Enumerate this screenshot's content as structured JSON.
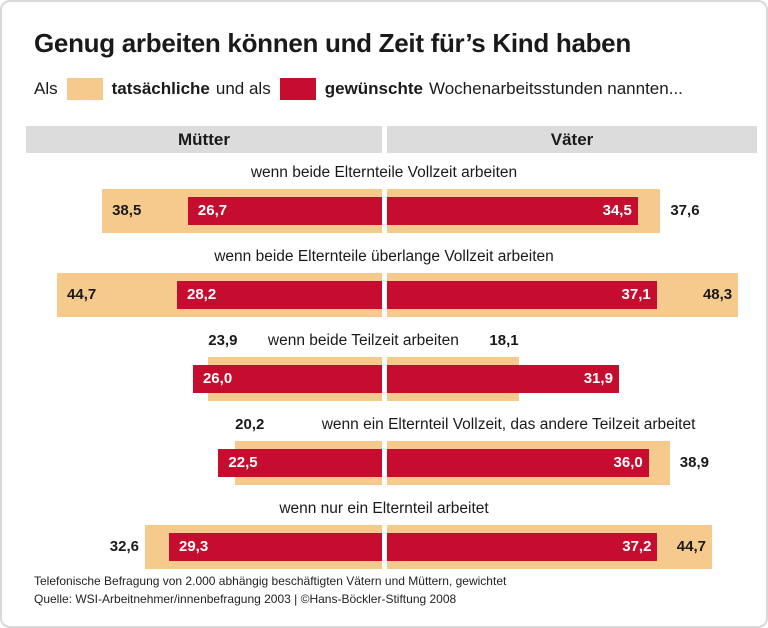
{
  "card": {
    "title": "Genug arbeiten können und Zeit für’s Kind haben"
  },
  "legend": {
    "prefix": "Als",
    "actual_label": "tatsächliche",
    "connector": "und als",
    "desired_label": "gewünschte",
    "suffix": "Wochenarbeitsstunden nannten..."
  },
  "column_headers": {
    "left": "Mütter",
    "right": "Väter"
  },
  "footer": {
    "line1": "Telefonische Befragung von 2.000 abhängig beschäftigten Vätern und Müttern, gewichtet",
    "line2": "Quelle: WSI-Arbeitnehmer/innenbefragung 2003 | ©Hans-Böckler-Stiftung 2008"
  },
  "colors": {
    "actual": "#F6CA8D",
    "desired": "#C60D30",
    "header_band": "#DCDCDC",
    "text": "#1A1A1A"
  },
  "chart_data": {
    "type": "bar",
    "orientation": "horizontal-diverging",
    "unit": "Wochenarbeitsstunden",
    "decimal_separator": ",",
    "groups": [
      "Mütter",
      "Väter"
    ],
    "series": [
      {
        "name": "tatsächliche",
        "color": "#F6CA8D"
      },
      {
        "name": "gewünschte",
        "color": "#C60D30"
      }
    ],
    "scenarios": [
      {
        "label": "wenn beide Elternteile Vollzeit arbeiten",
        "muetter": {
          "actual": 38.5,
          "desired": 26.7
        },
        "vaeter": {
          "actual": 37.6,
          "desired": 34.5
        }
      },
      {
        "label": "wenn beide Elternteile überlange Vollzeit arbeiten",
        "muetter": {
          "actual": 44.7,
          "desired": 28.2
        },
        "vaeter": {
          "actual": 48.3,
          "desired": 37.1
        }
      },
      {
        "label": "wenn beide Teilzeit arbeiten",
        "muetter": {
          "actual": 23.9,
          "desired": 26.0
        },
        "vaeter": {
          "actual": 18.1,
          "desired": 31.9
        }
      },
      {
        "label": "wenn ein Elternteil Vollzeit, das andere Teilzeit arbeitet",
        "muetter": {
          "actual": 20.2,
          "desired": 22.5
        },
        "vaeter": {
          "actual": 38.9,
          "desired": 36.0
        }
      },
      {
        "label": "wenn nur ein Elternteil arbeitet",
        "muetter": {
          "actual": 32.6,
          "desired": 29.3
        },
        "vaeter": {
          "actual": 44.7,
          "desired": 37.2
        }
      }
    ]
  }
}
